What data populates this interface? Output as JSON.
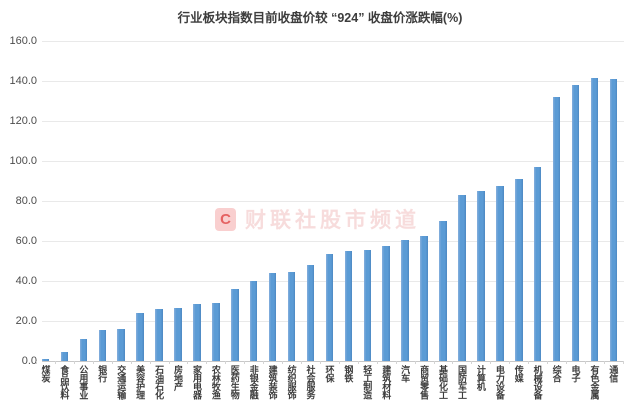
{
  "chart_data": {
    "type": "bar",
    "title": "行业板块指数目前收盘价较 “924” 收盘价涨跌幅(%)",
    "categories": [
      "煤炭",
      "食品饮料",
      "公用事业",
      "银行",
      "交通运输",
      "美容护理",
      "石油石化",
      "房地产",
      "家用电器",
      "农林牧渔",
      "医药生物",
      "非银金融",
      "建筑装饰",
      "纺织服饰",
      "社会服务",
      "环保",
      "钢铁",
      "轻工制造",
      "建筑材料",
      "汽车",
      "商贸零售",
      "基础化工",
      "国防军工",
      "计算机",
      "电力设备",
      "传媒",
      "机械设备",
      "综合",
      "电子",
      "有色金属",
      "通信"
    ],
    "values": [
      0.8,
      4.6,
      11.0,
      15.4,
      15.9,
      24.2,
      25.9,
      26.4,
      28.4,
      29.1,
      35.9,
      40.2,
      43.8,
      44.7,
      47.8,
      53.3,
      55.2,
      55.7,
      57.5,
      60.5,
      62.6,
      69.8,
      83.0,
      84.8,
      87.5,
      90.9,
      96.9,
      131.8,
      137.8,
      141.3,
      140.9
    ],
    "xlabel": "",
    "ylabel": "",
    "ylim": [
      0,
      160
    ],
    "ytick_step": 20,
    "ytick_labels": [
      "0.0",
      "20.0",
      "40.0",
      "60.0",
      "80.0",
      "100.0",
      "120.0",
      "140.0",
      "160.0"
    ],
    "grid": true,
    "legend": false,
    "bar_color": "#5B9BD5"
  },
  "watermark": {
    "logo": "C",
    "text": "财联社股市频道"
  },
  "colors": {
    "bar": "#5B9BD5",
    "gridline": "#e9e9e9",
    "axis_line": "#c8c8c8",
    "title_text": "#3d3d3d",
    "tick_text": "#4d4d4d",
    "watermark_red": "#e05a5a"
  }
}
